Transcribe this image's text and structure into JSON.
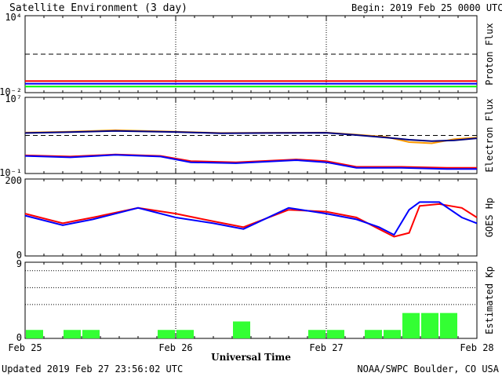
{
  "header": {
    "title": "Satellite Environment (3 day)",
    "begin_label": "Begin:",
    "begin_value": "2019 Feb 25 0000 UTC"
  },
  "footer": {
    "updated": "Updated 2019 Feb 27 23:56:02 UTC",
    "credit": "NOAA/SWPC Boulder, CO USA"
  },
  "x_axis": {
    "label": "Universal Time",
    "ticks": [
      "Feb 25",
      "Feb 26",
      "Feb 27",
      "Feb 28"
    ]
  },
  "colors": {
    "red": "#ff0000",
    "blue": "#0000ff",
    "green": "#00ff00",
    "orange": "#ff9900",
    "navy": "#000080",
    "kp_bar": "#33ff33"
  },
  "chart_data": [
    {
      "type": "line",
      "ylabel": "Proton Flux",
      "yscale": "log",
      "ylim": [
        0.01,
        10000
      ],
      "y_ticks": [
        "10⁴",
        "10⁻²"
      ],
      "threshold": 10,
      "x_range_days": [
        0,
        3
      ],
      "series": [
        {
          "color": "red",
          "x": [
            0,
            0.5,
            1,
            1.5,
            2,
            2.5,
            3
          ],
          "y": [
            0.08,
            0.08,
            0.08,
            0.08,
            0.08,
            0.08,
            0.08
          ]
        },
        {
          "color": "blue",
          "x": [
            0,
            0.5,
            1,
            1.5,
            2,
            2.5,
            3
          ],
          "y": [
            0.05,
            0.05,
            0.05,
            0.05,
            0.05,
            0.05,
            0.05
          ]
        },
        {
          "color": "green",
          "x": [
            0,
            0.5,
            1,
            1.5,
            2,
            2.5,
            3
          ],
          "y": [
            0.03,
            0.03,
            0.03,
            0.03,
            0.03,
            0.03,
            0.03
          ]
        }
      ]
    },
    {
      "type": "line",
      "ylabel": "Electron Flux",
      "yscale": "log",
      "ylim": [
        0.1,
        10000000
      ],
      "y_ticks": [
        "10⁷",
        "10⁻¹"
      ],
      "threshold": 1000,
      "series": [
        {
          "color": "orange",
          "x": [
            0,
            0.3,
            0.6,
            1.0,
            1.3,
            1.6,
            2.0,
            2.2,
            2.4,
            2.55,
            2.7,
            2.85,
            3.0
          ],
          "y": [
            2000,
            2500,
            3500,
            2500,
            1800,
            1900,
            2000,
            1200,
            700,
            200,
            150,
            400,
            600
          ]
        },
        {
          "color": "navy",
          "x": [
            0,
            0.3,
            0.6,
            1.0,
            1.3,
            1.6,
            2.0,
            2.2,
            2.4,
            2.55,
            2.7,
            2.85,
            3.0
          ],
          "y": [
            1800,
            2200,
            3000,
            2300,
            1700,
            1800,
            1900,
            1100,
            600,
            350,
            250,
            300,
            500
          ]
        },
        {
          "color": "red",
          "x": [
            0,
            0.3,
            0.6,
            0.9,
            1.1,
            1.4,
            1.8,
            2.0,
            2.2,
            2.5,
            2.8,
            3.0
          ],
          "y": [
            8,
            6,
            10,
            7,
            2,
            1.5,
            3,
            2,
            0.5,
            0.5,
            0.4,
            0.4
          ]
        },
        {
          "color": "blue",
          "x": [
            0,
            0.3,
            0.6,
            0.9,
            1.1,
            1.4,
            1.8,
            2.0,
            2.2,
            2.5,
            2.8,
            3.0
          ],
          "y": [
            7,
            5,
            9,
            6,
            1.5,
            1.2,
            2.5,
            1.5,
            0.4,
            0.4,
            0.3,
            0.3
          ]
        }
      ]
    },
    {
      "type": "line",
      "ylabel": "GOES Hp",
      "ylim": [
        0,
        200
      ],
      "y_ticks": [
        "200",
        "0"
      ],
      "series": [
        {
          "color": "red",
          "x": [
            0,
            0.25,
            0.45,
            0.75,
            1.0,
            1.25,
            1.45,
            1.75,
            2.0,
            2.2,
            2.35,
            2.45,
            2.55,
            2.62,
            2.75,
            2.9,
            3.0
          ],
          "y": [
            110,
            85,
            100,
            125,
            110,
            90,
            75,
            120,
            115,
            100,
            70,
            50,
            60,
            130,
            135,
            125,
            100
          ]
        },
        {
          "color": "blue",
          "x": [
            0,
            0.25,
            0.45,
            0.75,
            1.0,
            1.25,
            1.45,
            1.75,
            2.0,
            2.2,
            2.35,
            2.45,
            2.55,
            2.62,
            2.75,
            2.9,
            3.0
          ],
          "y": [
            105,
            80,
            95,
            125,
            100,
            85,
            70,
            125,
            110,
            95,
            75,
            55,
            120,
            140,
            140,
            100,
            85
          ]
        }
      ]
    },
    {
      "type": "bar",
      "ylabel": "Estimated Kp",
      "ylim": [
        0,
        9
      ],
      "y_ticks": [
        "9",
        "0"
      ],
      "dotted_levels": [
        4,
        6,
        8
      ],
      "bar_width_days": 0.125,
      "values": [
        1,
        0,
        1,
        1,
        0,
        0,
        0,
        1,
        1,
        0,
        0,
        2,
        0,
        0,
        0,
        1,
        1,
        0,
        1,
        1,
        3,
        3,
        3,
        0
      ]
    }
  ]
}
